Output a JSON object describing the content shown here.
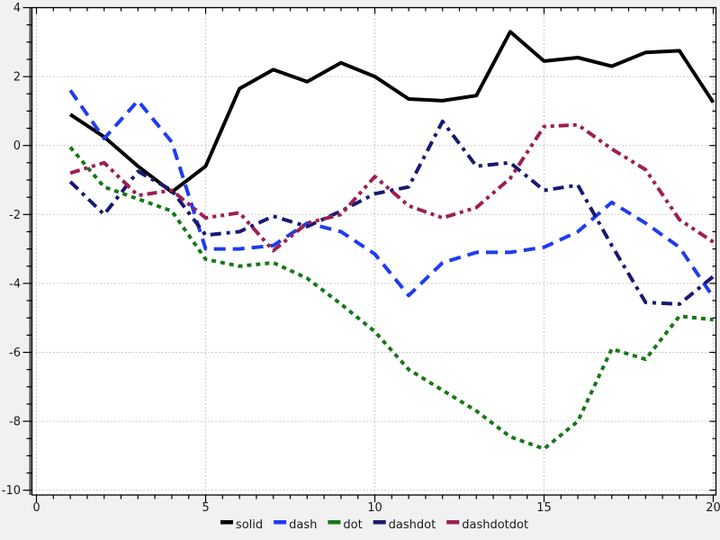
{
  "figure": {
    "background": "#f1f1f1",
    "plot_background": "#ffffff",
    "grid_color": "#999999",
    "spine_color": "#000000",
    "left_spine_accent": "#4d4d4d",
    "tick_label_color": "#1a1a1a",
    "tick_font_size": 13,
    "legend_font_size": 13
  },
  "chart_data": {
    "type": "line",
    "title": "",
    "xlabel": "",
    "ylabel": "",
    "grid": true,
    "legend_position": "bottom-center",
    "xlim": [
      0,
      20.1
    ],
    "ylim": [
      -10.3,
      4
    ],
    "x_major_ticks": [
      0,
      5,
      10,
      15,
      20
    ],
    "x_tick_labels": [
      "0",
      "5",
      "10",
      "15",
      "20"
    ],
    "y_major_ticks": [
      4,
      2,
      0,
      -2,
      -4,
      -6,
      -8,
      -10
    ],
    "y_tick_labels": [
      "4",
      "2",
      "0",
      "-2",
      "-4",
      "-6",
      "-8",
      "-10"
    ],
    "minor_tick_step": 0.5,
    "x": [
      1,
      2,
      3,
      4,
      5,
      6,
      7,
      8,
      9,
      10,
      11,
      12,
      13,
      14,
      15,
      16,
      17,
      18,
      19,
      20
    ],
    "series": [
      {
        "name": "solid",
        "style": "solid",
        "color": "#000000",
        "values": [
          0.9,
          0.25,
          -0.6,
          -1.35,
          -0.6,
          1.65,
          2.2,
          1.85,
          2.4,
          2.0,
          1.35,
          1.3,
          1.45,
          3.3,
          2.45,
          2.55,
          2.3,
          2.7,
          2.75,
          1.25
        ]
      },
      {
        "name": "dash",
        "style": "dash",
        "color": "#1e3cf0",
        "values": [
          1.6,
          0.2,
          1.3,
          0.1,
          -3.0,
          -3.0,
          -2.9,
          -2.25,
          -2.5,
          -3.15,
          -4.35,
          -3.4,
          -3.1,
          -3.1,
          -2.95,
          -2.5,
          -1.65,
          -2.25,
          -2.95,
          -4.4
        ]
      },
      {
        "name": "dot",
        "style": "dot",
        "color": "#177817",
        "values": [
          -0.05,
          -1.2,
          -1.55,
          -1.9,
          -3.3,
          -3.5,
          -3.4,
          -3.85,
          -4.6,
          -5.4,
          -6.5,
          -7.1,
          -7.7,
          -8.45,
          -8.8,
          -8.0,
          -5.9,
          -6.2,
          -4.95,
          -5.05
        ]
      },
      {
        "name": "dashdot",
        "style": "dashdot",
        "color": "#191970",
        "values": [
          -1.05,
          -2.0,
          -0.75,
          -1.3,
          -2.6,
          -2.5,
          -2.05,
          -2.35,
          -1.9,
          -1.4,
          -1.2,
          0.7,
          -0.6,
          -0.5,
          -1.3,
          -1.15,
          -2.9,
          -4.55,
          -4.6,
          -3.8
        ]
      },
      {
        "name": "dashdotdot",
        "style": "dashdotdot",
        "color": "#9c2052",
        "values": [
          -0.8,
          -0.5,
          -1.45,
          -1.3,
          -2.1,
          -1.95,
          -3.05,
          -2.25,
          -2.0,
          -0.9,
          -1.75,
          -2.1,
          -1.8,
          -0.95,
          0.55,
          0.6,
          -0.1,
          -0.7,
          -2.15,
          -2.8
        ]
      }
    ],
    "legend": [
      "solid",
      "dash",
      "dot",
      "dashdot",
      "dashdotdot"
    ]
  }
}
